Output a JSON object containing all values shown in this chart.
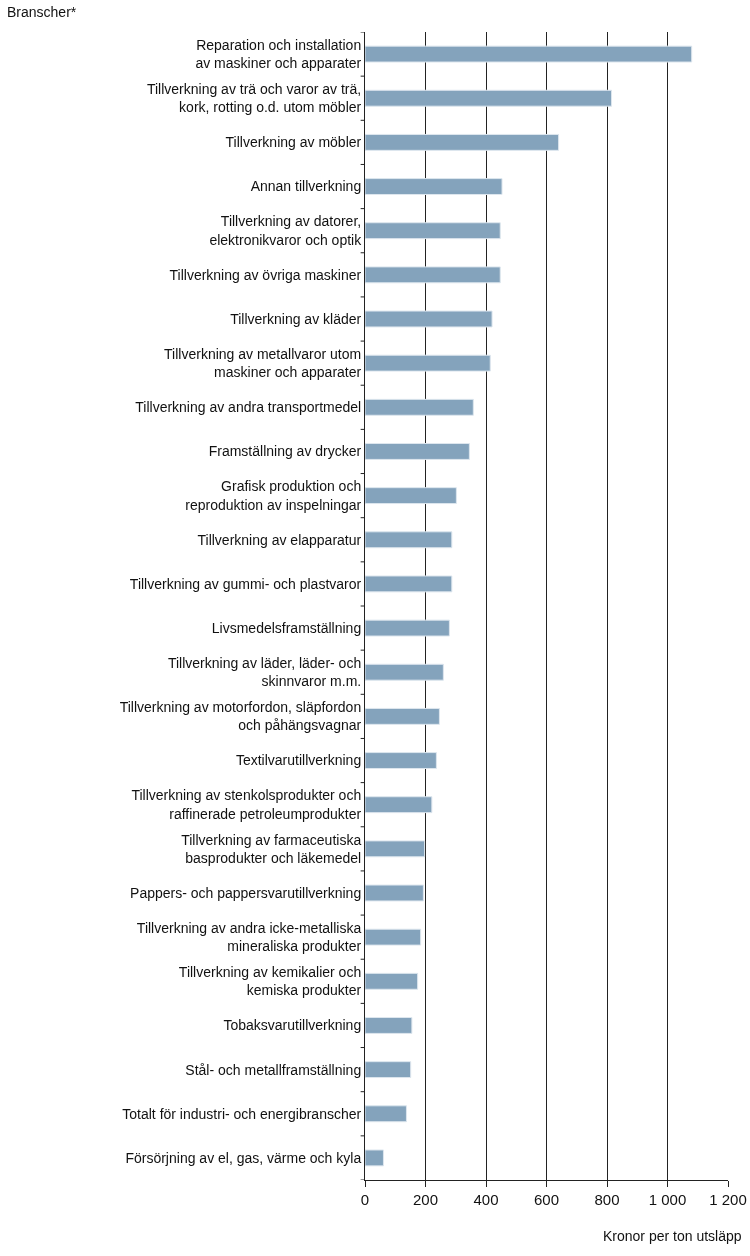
{
  "chart_data": {
    "type": "bar",
    "orientation": "horizontal",
    "ylabel": "Branscher*",
    "xlabel": "Kronor per ton utsläpp",
    "categories": [
      "Reparation och installation\nav maskiner och apparater",
      "Tillverkning av trä och varor av trä,\nkork, rotting o.d. utom möbler",
      "Tillverkning av möbler",
      "Annan tillverkning",
      "Tillverkning av datorer,\nelektronikvaror och optik",
      "Tillverkning av övriga maskiner",
      "Tillverkning av kläder",
      "Tillverkning av metallvaror utom\nmaskiner och apparater",
      "Tillverkning av andra transportmedel",
      "Framställning av drycker",
      "Grafisk produktion och\nreproduktion av inspelningar",
      "Tillverkning av elapparatur",
      "Tillverkning av gummi- och plastvaror",
      "Livsmedelsframställning",
      "Tillverkning av läder, läder- och\nskinnvaror m.m.",
      "Tillverkning av motorfordon, släpfordon\noch påhängsvagnar",
      "Textilvarutillverkning",
      "Tillverkning av stenkolsprodukter och\nraffinerade petroleumprodukter",
      "Tillverkning av farmaceutiska\nbasprodukter och läkemedel",
      "Pappers- och pappersvarutillverkning",
      "Tillverkning av andra icke-metalliska\nmineraliska produkter",
      "Tillverkning av kemikalier och\nkemiska produkter",
      "Tobaksvarutillverkning",
      "Stål- och metallframställning",
      "Totalt för industri- och energibranscher",
      "Försörjning av el, gas, värme och kyla"
    ],
    "values": [
      1080,
      815,
      640,
      453,
      447,
      447,
      420,
      414,
      358,
      345,
      302,
      287,
      287,
      279,
      259,
      246,
      236,
      221,
      197,
      193,
      184,
      174,
      155,
      151,
      137,
      61
    ],
    "color": "#84a3bc",
    "xlim": [
      0,
      1200
    ],
    "xticks": [
      0,
      200,
      400,
      600,
      800,
      {
        "value": 1000,
        "label": "1 000"
      },
      {
        "value": 1200,
        "label": "1 200"
      }
    ],
    "grid": "x",
    "legend": false
  }
}
